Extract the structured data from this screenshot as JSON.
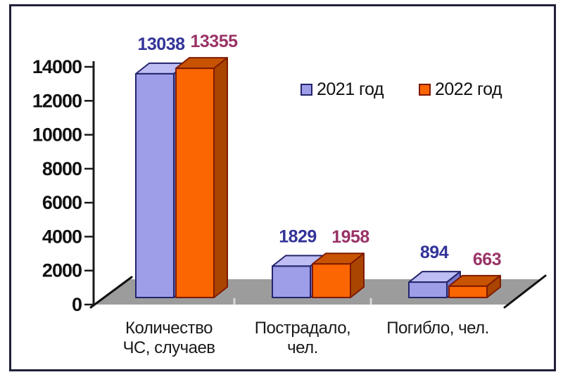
{
  "chart_data": {
    "type": "bar",
    "style": "3d-clustered-column",
    "title": "",
    "categories": [
      "Количество ЧС, случаев",
      "Пострадало, чел.",
      "Погибло, чел."
    ],
    "category_lines": [
      [
        "Количество",
        "ЧС, случаев"
      ],
      [
        "Пострадало,",
        "чел."
      ],
      [
        "Погибло, чел."
      ]
    ],
    "series": [
      {
        "name": "2021 год",
        "values": [
          13038,
          1829,
          894
        ],
        "front_color": "#9E9EE8",
        "top_color": "#BEBEF4",
        "side_color": "#7575C9",
        "border_color": "#23246B",
        "label_color": "#333399"
      },
      {
        "name": "2022 год",
        "values": [
          13355,
          1958,
          663
        ],
        "front_color": "#FB6502",
        "top_color": "#C85403",
        "side_color": "#A94500",
        "border_color": "#7E1A00",
        "label_color": "#993366"
      }
    ],
    "value_labels_shown": true,
    "yticks": [
      0,
      2000,
      4000,
      6000,
      8000,
      10000,
      12000,
      14000
    ],
    "ylim": [
      0,
      14000
    ],
    "ytick_step": 2000,
    "xlabel": "",
    "ylabel": "",
    "grid": false,
    "legend_position": "top-right-inside",
    "floor_color": "#9C9C9C",
    "axis_color": "#1a1a1a",
    "tick_label_color": "#111111",
    "frame_border_color": "#20203a"
  }
}
